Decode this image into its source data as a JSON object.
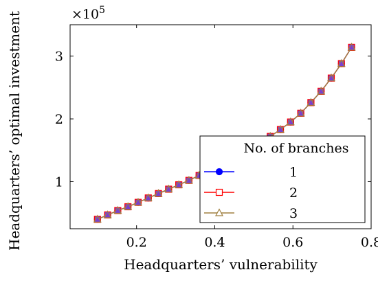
{
  "chart_data": {
    "type": "line",
    "title": "",
    "xlabel": "Headquarters’ vulnerability",
    "ylabel": "Headquarters’ optimal investment",
    "y_multiplier_base": "×10",
    "y_multiplier_exp": "5",
    "xlim": [
      0.03,
      0.8
    ],
    "ylim": [
      0.25,
      3.5
    ],
    "xticks": [
      0.2,
      0.4,
      0.6,
      0.8
    ],
    "xtick_labels": [
      "0.2",
      "0.4",
      "0.6",
      "0.8"
    ],
    "yticks": [
      1,
      2,
      3
    ],
    "ytick_labels": [
      "1",
      "2",
      "3"
    ],
    "grid": false,
    "legend": {
      "title": "No. of branches",
      "placement": "bottom-right",
      "entries": [
        "1",
        "2",
        "3"
      ]
    },
    "x": [
      0.1,
      0.126,
      0.152,
      0.178,
      0.204,
      0.23,
      0.256,
      0.282,
      0.308,
      0.334,
      0.36,
      0.386,
      0.412,
      0.438,
      0.464,
      0.49,
      0.516,
      0.542,
      0.568,
      0.594,
      0.62,
      0.646,
      0.672,
      0.698,
      0.724,
      0.75
    ],
    "series": [
      {
        "name": "1",
        "color": "#0000ff",
        "marker": "circle",
        "values": [
          0.4,
          0.47,
          0.54,
          0.6,
          0.67,
          0.74,
          0.81,
          0.88,
          0.95,
          1.02,
          1.1,
          1.18,
          1.26,
          1.35,
          1.44,
          1.53,
          1.62,
          1.72,
          1.83,
          1.95,
          2.09,
          2.26,
          2.44,
          2.65,
          2.88,
          3.14
        ]
      },
      {
        "name": "2",
        "color": "#ff0000",
        "marker": "square",
        "values": [
          0.4,
          0.47,
          0.54,
          0.6,
          0.67,
          0.74,
          0.81,
          0.88,
          0.95,
          1.02,
          1.1,
          1.18,
          1.26,
          1.35,
          1.44,
          1.53,
          1.62,
          1.72,
          1.83,
          1.95,
          2.09,
          2.26,
          2.44,
          2.65,
          2.88,
          3.14
        ]
      },
      {
        "name": "3",
        "color": "#a08040",
        "marker": "triangle",
        "values": [
          0.4,
          0.47,
          0.54,
          0.6,
          0.67,
          0.74,
          0.81,
          0.88,
          0.95,
          1.02,
          1.1,
          1.18,
          1.26,
          1.35,
          1.44,
          1.53,
          1.62,
          1.72,
          1.83,
          1.95,
          2.09,
          2.26,
          2.44,
          2.65,
          2.88,
          3.14
        ]
      }
    ],
    "marker_fill": "#7a40d0"
  }
}
